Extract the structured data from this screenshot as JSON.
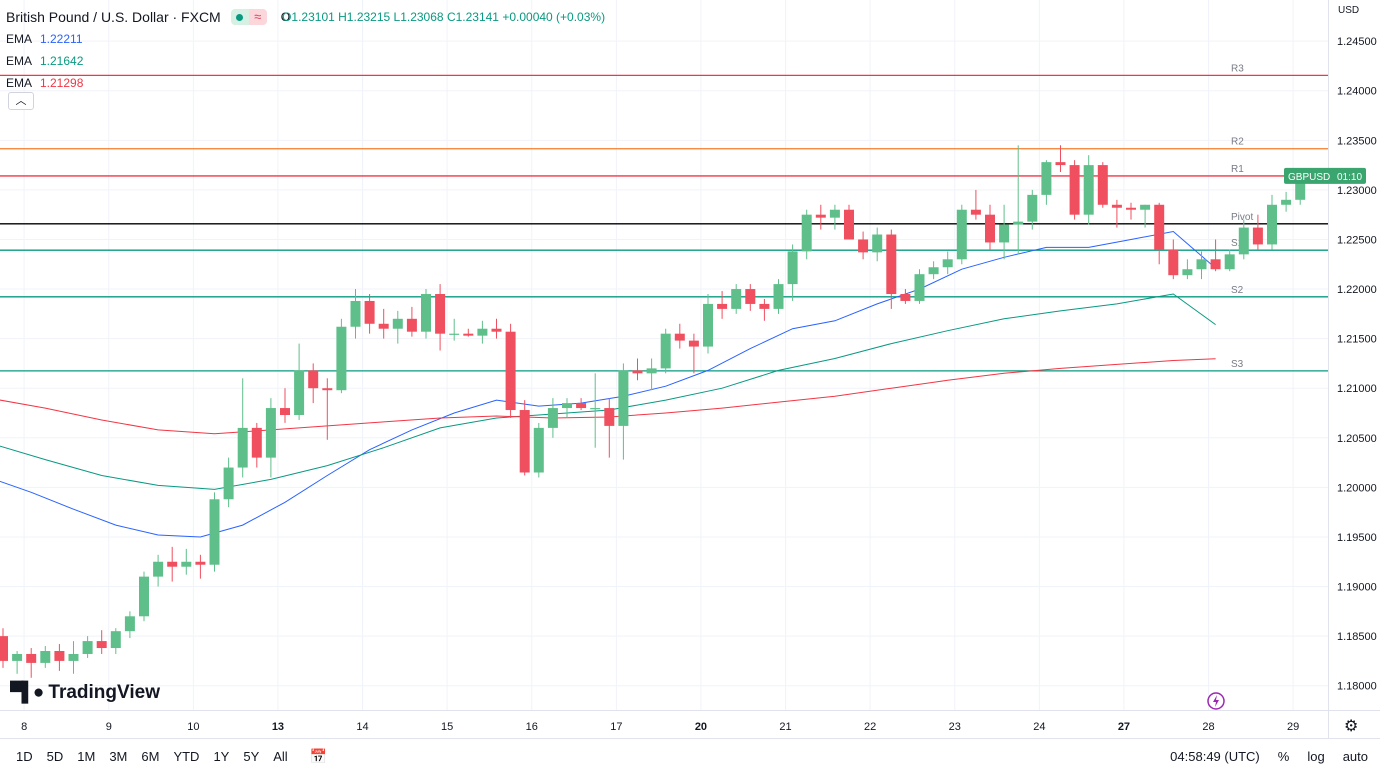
{
  "header": {
    "symbol_title": "British Pound / U.S. Dollar · FXCM",
    "open": "O1.23101",
    "high": "H1.23215",
    "low": "L1.23068",
    "close": "C1.23141",
    "change": "+0.00040 (+0.03%)",
    "currency": "USD"
  },
  "indicators": [
    {
      "label": "EMA",
      "value": "1.22211",
      "color": "#2962ff"
    },
    {
      "label": "EMA",
      "value": "1.21642",
      "color": "#089981"
    },
    {
      "label": "EMA",
      "value": "1.21298",
      "color": "#f23645"
    }
  ],
  "bottom_bar": {
    "timeframes": [
      "1D",
      "5D",
      "1M",
      "3M",
      "6M",
      "YTD",
      "1Y",
      "5Y",
      "All"
    ],
    "clock": "04:58:49 (UTC)",
    "percent": "%",
    "log": "log",
    "auto": "auto"
  },
  "logo_text": "TradingView",
  "colors": {
    "up": "#5fbf8a",
    "down": "#ef4f5f",
    "grid": "#f0f3fa"
  },
  "chart_data": {
    "type": "candlestick",
    "title": "British Pound / U.S. Dollar · FXCM",
    "ylim": [
      1.17755,
      1.24915
    ],
    "y_ticks": [
      "1.18000",
      "1.18500",
      "1.19000",
      "1.19500",
      "1.20000",
      "1.20500",
      "1.21000",
      "1.21500",
      "1.22000",
      "1.22500",
      "1.23000",
      "1.23500",
      "1.24000",
      "1.24500"
    ],
    "x_ticks": [
      {
        "label": "8",
        "i": 1.5,
        "bold": false
      },
      {
        "label": "9",
        "i": 7.5,
        "bold": false
      },
      {
        "label": "10",
        "i": 13.5,
        "bold": false
      },
      {
        "label": "13",
        "i": 19.5,
        "bold": true
      },
      {
        "label": "14",
        "i": 25.5,
        "bold": false
      },
      {
        "label": "15",
        "i": 31.5,
        "bold": false
      },
      {
        "label": "16",
        "i": 37.5,
        "bold": false
      },
      {
        "label": "17",
        "i": 43.5,
        "bold": false
      },
      {
        "label": "20",
        "i": 49.5,
        "bold": true
      },
      {
        "label": "21",
        "i": 55.5,
        "bold": false
      },
      {
        "label": "22",
        "i": 61.5,
        "bold": false
      },
      {
        "label": "23",
        "i": 67.5,
        "bold": false
      },
      {
        "label": "24",
        "i": 73.5,
        "bold": false
      },
      {
        "label": "27",
        "i": 79.5,
        "bold": true
      },
      {
        "label": "28",
        "i": 85.5,
        "bold": false
      },
      {
        "label": "29",
        "i": 91.5,
        "bold": false
      }
    ],
    "candles": [
      [
        1.185,
        1.1858,
        1.1818,
        1.1825
      ],
      [
        1.1825,
        1.1835,
        1.1812,
        1.1832
      ],
      [
        1.1832,
        1.1838,
        1.1808,
        1.1823
      ],
      [
        1.1823,
        1.184,
        1.1818,
        1.1835
      ],
      [
        1.1835,
        1.1842,
        1.1815,
        1.1825
      ],
      [
        1.1825,
        1.1845,
        1.1812,
        1.1832
      ],
      [
        1.1832,
        1.185,
        1.1828,
        1.1845
      ],
      [
        1.1845,
        1.1856,
        1.1832,
        1.1838
      ],
      [
        1.1838,
        1.1858,
        1.1832,
        1.1855
      ],
      [
        1.1855,
        1.1875,
        1.1848,
        1.187
      ],
      [
        1.187,
        1.1915,
        1.1865,
        1.191
      ],
      [
        1.191,
        1.1932,
        1.19,
        1.1925
      ],
      [
        1.1925,
        1.194,
        1.1905,
        1.192
      ],
      [
        1.192,
        1.1938,
        1.1912,
        1.1925
      ],
      [
        1.1925,
        1.1932,
        1.1908,
        1.1922
      ],
      [
        1.1922,
        1.1995,
        1.1915,
        1.1988
      ],
      [
        1.1988,
        1.203,
        1.198,
        1.202
      ],
      [
        1.202,
        1.211,
        1.201,
        1.206
      ],
      [
        1.206,
        1.2065,
        1.202,
        1.203
      ],
      [
        1.203,
        1.209,
        1.201,
        1.208
      ],
      [
        1.208,
        1.21,
        1.2065,
        1.2073
      ],
      [
        1.2073,
        1.2145,
        1.2068,
        1.2118
      ],
      [
        1.2118,
        1.2125,
        1.2085,
        1.21
      ],
      [
        1.21,
        1.211,
        1.2048,
        1.2098
      ],
      [
        1.2098,
        1.217,
        1.2095,
        1.2162
      ],
      [
        1.2162,
        1.22,
        1.215,
        1.2188
      ],
      [
        1.2188,
        1.2195,
        1.2155,
        1.2165
      ],
      [
        1.2165,
        1.218,
        1.215,
        1.216
      ],
      [
        1.216,
        1.2178,
        1.2145,
        1.217
      ],
      [
        1.217,
        1.2182,
        1.2152,
        1.2157
      ],
      [
        1.2157,
        1.22,
        1.215,
        1.2195
      ],
      [
        1.2195,
        1.2205,
        1.2138,
        1.2155
      ],
      [
        1.2155,
        1.217,
        1.2148,
        1.2155
      ],
      [
        1.2155,
        1.216,
        1.2152,
        1.2153
      ],
      [
        1.2153,
        1.2168,
        1.2145,
        1.216
      ],
      [
        1.216,
        1.217,
        1.215,
        1.2157
      ],
      [
        1.2157,
        1.2165,
        1.207,
        1.2078
      ],
      [
        1.2078,
        1.2088,
        1.2012,
        1.2015
      ],
      [
        1.2015,
        1.2065,
        1.201,
        1.206
      ],
      [
        1.206,
        1.209,
        1.205,
        1.208
      ],
      [
        1.208,
        1.209,
        1.207,
        1.2085
      ],
      [
        1.2085,
        1.209,
        1.2078,
        1.208
      ],
      [
        1.208,
        1.2115,
        1.204,
        1.208
      ],
      [
        1.208,
        1.209,
        1.203,
        1.2062
      ],
      [
        1.2062,
        1.2125,
        1.2028,
        1.2118
      ],
      [
        1.2118,
        1.213,
        1.2108,
        1.2115
      ],
      [
        1.2115,
        1.213,
        1.2098,
        1.212
      ],
      [
        1.212,
        1.216,
        1.2115,
        1.2155
      ],
      [
        1.2155,
        1.2165,
        1.214,
        1.2148
      ],
      [
        1.2148,
        1.2155,
        1.2115,
        1.2142
      ],
      [
        1.2142,
        1.2195,
        1.2135,
        1.2185
      ],
      [
        1.2185,
        1.2198,
        1.217,
        1.218
      ],
      [
        1.218,
        1.2205,
        1.2175,
        1.22
      ],
      [
        1.22,
        1.2205,
        1.2178,
        1.2185
      ],
      [
        1.2185,
        1.219,
        1.2168,
        1.218
      ],
      [
        1.218,
        1.221,
        1.2175,
        1.2205
      ],
      [
        1.2205,
        1.2245,
        1.2188,
        1.2238
      ],
      [
        1.2238,
        1.228,
        1.223,
        1.2275
      ],
      [
        1.2275,
        1.2285,
        1.226,
        1.2272
      ],
      [
        1.2272,
        1.2285,
        1.226,
        1.228
      ],
      [
        1.228,
        1.2285,
        1.225,
        1.225
      ],
      [
        1.225,
        1.2258,
        1.223,
        1.2237
      ],
      [
        1.2237,
        1.2262,
        1.2228,
        1.2255
      ],
      [
        1.2255,
        1.226,
        1.218,
        1.2195
      ],
      [
        1.2195,
        1.22,
        1.2185,
        1.2188
      ],
      [
        1.2188,
        1.222,
        1.2185,
        1.2215
      ],
      [
        1.2215,
        1.2228,
        1.221,
        1.2222
      ],
      [
        1.2222,
        1.2238,
        1.2215,
        1.223
      ],
      [
        1.223,
        1.2285,
        1.2225,
        1.228
      ],
      [
        1.228,
        1.23,
        1.227,
        1.2275
      ],
      [
        1.2275,
        1.2285,
        1.224,
        1.2247
      ],
      [
        1.2247,
        1.2285,
        1.223,
        1.2265
      ],
      [
        1.2265,
        1.2345,
        1.2235,
        1.2268
      ],
      [
        1.2268,
        1.23,
        1.226,
        1.2295
      ],
      [
        1.2295,
        1.233,
        1.2285,
        1.2328
      ],
      [
        1.2328,
        1.2345,
        1.2318,
        1.2325
      ],
      [
        1.2325,
        1.233,
        1.227,
        1.2275
      ],
      [
        1.2275,
        1.2335,
        1.2265,
        1.2325
      ],
      [
        1.2325,
        1.2328,
        1.2282,
        1.2285
      ],
      [
        1.2285,
        1.229,
        1.2262,
        1.2282
      ]
    ],
    "candles_late": [
      [
        1.2282,
        1.2287,
        1.227,
        1.228
      ],
      [
        1.228,
        1.2285,
        1.2262,
        1.2285
      ],
      [
        1.2285,
        1.2287,
        1.2225,
        1.224
      ],
      [
        1.224,
        1.225,
        1.221,
        1.2214
      ],
      [
        1.2214,
        1.223,
        1.221,
        1.222
      ],
      [
        1.222,
        1.2238,
        1.221,
        1.223
      ],
      [
        1.223,
        1.225,
        1.2218,
        1.222
      ],
      [
        1.222,
        1.224,
        1.2218,
        1.2235
      ],
      [
        1.2235,
        1.227,
        1.223,
        1.2262
      ],
      [
        1.2262,
        1.2275,
        1.224,
        1.2245
      ],
      [
        1.2245,
        1.2295,
        1.224,
        1.2285
      ],
      [
        1.2285,
        1.2298,
        1.2278,
        1.229
      ],
      [
        1.229,
        1.2322,
        1.2285,
        1.2313
      ],
      [
        1.231,
        1.2322,
        1.2307,
        1.2314
      ]
    ],
    "pivot_levels": [
      {
        "label": "R3",
        "value": 1.24155,
        "color": "#f23645"
      },
      {
        "label": "R2",
        "value": 1.23415,
        "color": "#f57c2b"
      },
      {
        "label": "R1",
        "value": 1.23141,
        "color": "#f23645"
      },
      {
        "label": "Pivot",
        "value": 1.22658,
        "color": "#000000"
      },
      {
        "label": "S1",
        "value": 1.22392,
        "color": "#089981"
      },
      {
        "label": "S2",
        "value": 1.21922,
        "color": "#089981"
      },
      {
        "label": "S3",
        "value": 1.21175,
        "color": "#089981"
      }
    ],
    "ema_series": [
      {
        "name": "EMA 1.22211",
        "color": "#2962ff",
        "points": [
          [
            -1,
            1.201
          ],
          [
            2,
            1.1995
          ],
          [
            5,
            1.1978
          ],
          [
            8,
            1.1962
          ],
          [
            11,
            1.1952
          ],
          [
            14,
            1.195
          ],
          [
            17,
            1.1962
          ],
          [
            20,
            1.1985
          ],
          [
            23,
            1.2012
          ],
          [
            26,
            1.2038
          ],
          [
            29,
            1.2058
          ],
          [
            32,
            1.2075
          ],
          [
            35,
            1.2088
          ],
          [
            38,
            1.2082
          ],
          [
            41,
            1.2085
          ],
          [
            44,
            1.2092
          ],
          [
            47,
            1.2102
          ],
          [
            50,
            1.2118
          ],
          [
            53,
            1.214
          ],
          [
            56,
            1.216
          ],
          [
            59,
            1.2168
          ],
          [
            62,
            1.2185
          ],
          [
            65,
            1.22
          ],
          [
            68,
            1.222
          ],
          [
            71,
            1.2232
          ],
          [
            74,
            1.2242
          ],
          [
            77,
            1.2242
          ],
          [
            80,
            1.225
          ],
          [
            83,
            1.2258
          ],
          [
            86,
            1.22211
          ]
        ]
      },
      {
        "name": "EMA 1.21642",
        "color": "#089981",
        "points": [
          [
            -1,
            1.2045
          ],
          [
            3,
            1.2028
          ],
          [
            7,
            1.2012
          ],
          [
            11,
            1.2002
          ],
          [
            15,
            1.1998
          ],
          [
            19,
            1.2008
          ],
          [
            23,
            1.2022
          ],
          [
            27,
            1.204
          ],
          [
            31,
            1.206
          ],
          [
            35,
            1.207
          ],
          [
            39,
            1.2074
          ],
          [
            43,
            1.2078
          ],
          [
            47,
            1.2088
          ],
          [
            51,
            1.21
          ],
          [
            55,
            1.2118
          ],
          [
            59,
            1.213
          ],
          [
            63,
            1.2145
          ],
          [
            67,
            1.2158
          ],
          [
            71,
            1.217
          ],
          [
            75,
            1.2178
          ],
          [
            79,
            1.2185
          ],
          [
            83,
            1.2195
          ],
          [
            86,
            1.21642
          ]
        ]
      },
      {
        "name": "EMA 1.21298",
        "color": "#f23645",
        "points": [
          [
            -1,
            1.209
          ],
          [
            3,
            1.208
          ],
          [
            7,
            1.2068
          ],
          [
            11,
            1.2058
          ],
          [
            15,
            1.2054
          ],
          [
            19,
            1.2058
          ],
          [
            23,
            1.2062
          ],
          [
            27,
            1.2066
          ],
          [
            31,
            1.207
          ],
          [
            35,
            1.2072
          ],
          [
            39,
            1.207
          ],
          [
            43,
            1.2071
          ],
          [
            47,
            1.2075
          ],
          [
            51,
            1.208
          ],
          [
            55,
            1.2086
          ],
          [
            59,
            1.2092
          ],
          [
            63,
            1.21
          ],
          [
            67,
            1.2108
          ],
          [
            71,
            1.2115
          ],
          [
            75,
            1.212
          ],
          [
            79,
            1.2124
          ],
          [
            83,
            1.2128
          ],
          [
            86,
            1.21298
          ]
        ]
      }
    ],
    "price_tag": {
      "symbol": "GBPUSD",
      "countdown": "01:10",
      "value": 1.23141
    }
  }
}
